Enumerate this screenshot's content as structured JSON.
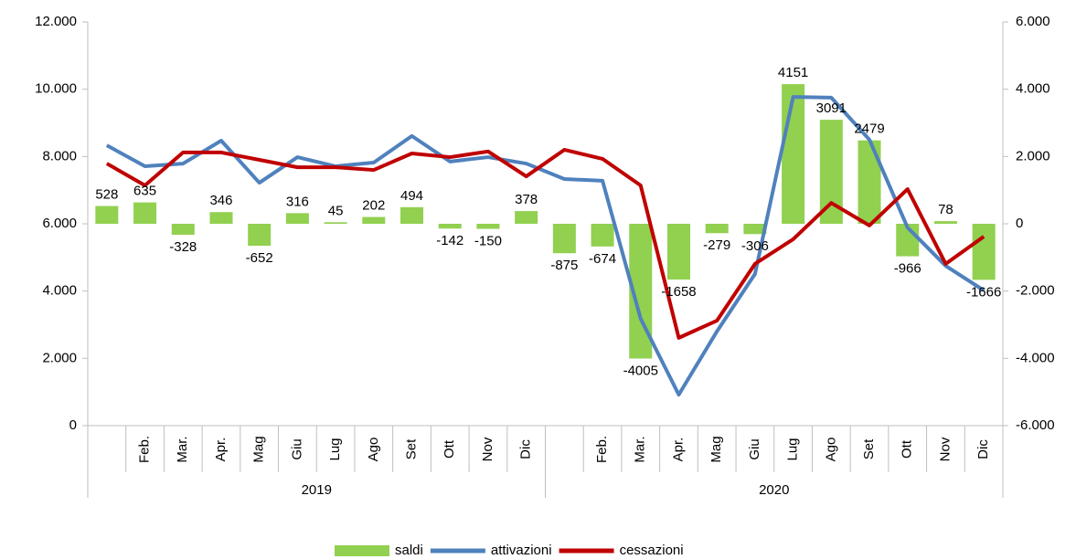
{
  "chart_data": {
    "type": "bar-line",
    "categories": [
      null,
      "Feb.",
      "Mar.",
      "Apr.",
      "Mag",
      "Giu",
      "Lug",
      "Ago",
      "Set",
      "Ott",
      "Nov",
      "Dic",
      null,
      "Feb.",
      "Mar.",
      "Apr.",
      "Mag",
      "Giu",
      "Lug",
      "Ago",
      "Set",
      "Ott",
      "Nov",
      "Dic"
    ],
    "years": [
      "2019",
      "2020"
    ],
    "series": [
      {
        "name": "saldi",
        "type": "bar",
        "axis": "y2",
        "color": "#92d050",
        "values": [
          528,
          635,
          -328,
          346,
          -652,
          316,
          45,
          202,
          494,
          -142,
          -150,
          378,
          -875,
          -674,
          -4005,
          -1658,
          -279,
          -306,
          4151,
          3091,
          2479,
          -966,
          78,
          -1666
        ]
      },
      {
        "name": "attivazioni",
        "type": "line",
        "color": "#4f81bd",
        "values": [
          8330,
          7710,
          7790,
          8470,
          7220,
          7980,
          7710,
          7820,
          8610,
          7850,
          7980,
          7790,
          7330,
          7280,
          3180,
          920,
          2800,
          4510,
          9770,
          9750,
          8500,
          5890,
          4750,
          4020
        ]
      },
      {
        "name": "cessazioni",
        "type": "line",
        "color": "#c00000",
        "values": [
          7790,
          7140,
          8120,
          8120,
          7900,
          7680,
          7680,
          7600,
          8090,
          7980,
          8150,
          7410,
          8200,
          7930,
          7140,
          2610,
          3120,
          4810,
          5540,
          6620,
          5950,
          7030,
          4810,
          5620
        ]
      }
    ],
    "ylim": [
      0,
      12000
    ],
    "yticks": [
      0,
      {
        "value": 2000,
        "label": "2.000"
      },
      {
        "value": 4000,
        "label": "4.000"
      },
      {
        "value": 6000,
        "label": "6.000"
      },
      {
        "value": 8000,
        "label": "8.000"
      },
      {
        "value": 10000,
        "label": "10.000"
      },
      {
        "value": 12000,
        "label": "12.000"
      }
    ],
    "y2lim": [
      -6000,
      6000
    ],
    "y2ticks": [
      {
        "value": -6000,
        "label": "-6.000"
      },
      {
        "value": -4000,
        "label": "-4.000"
      },
      {
        "value": -2000,
        "label": "-2.000"
      },
      0,
      {
        "value": 2000,
        "label": "2.000"
      },
      {
        "value": 4000,
        "label": "4.000"
      },
      {
        "value": 6000,
        "label": "6.000"
      }
    ],
    "legend": "bottom"
  }
}
